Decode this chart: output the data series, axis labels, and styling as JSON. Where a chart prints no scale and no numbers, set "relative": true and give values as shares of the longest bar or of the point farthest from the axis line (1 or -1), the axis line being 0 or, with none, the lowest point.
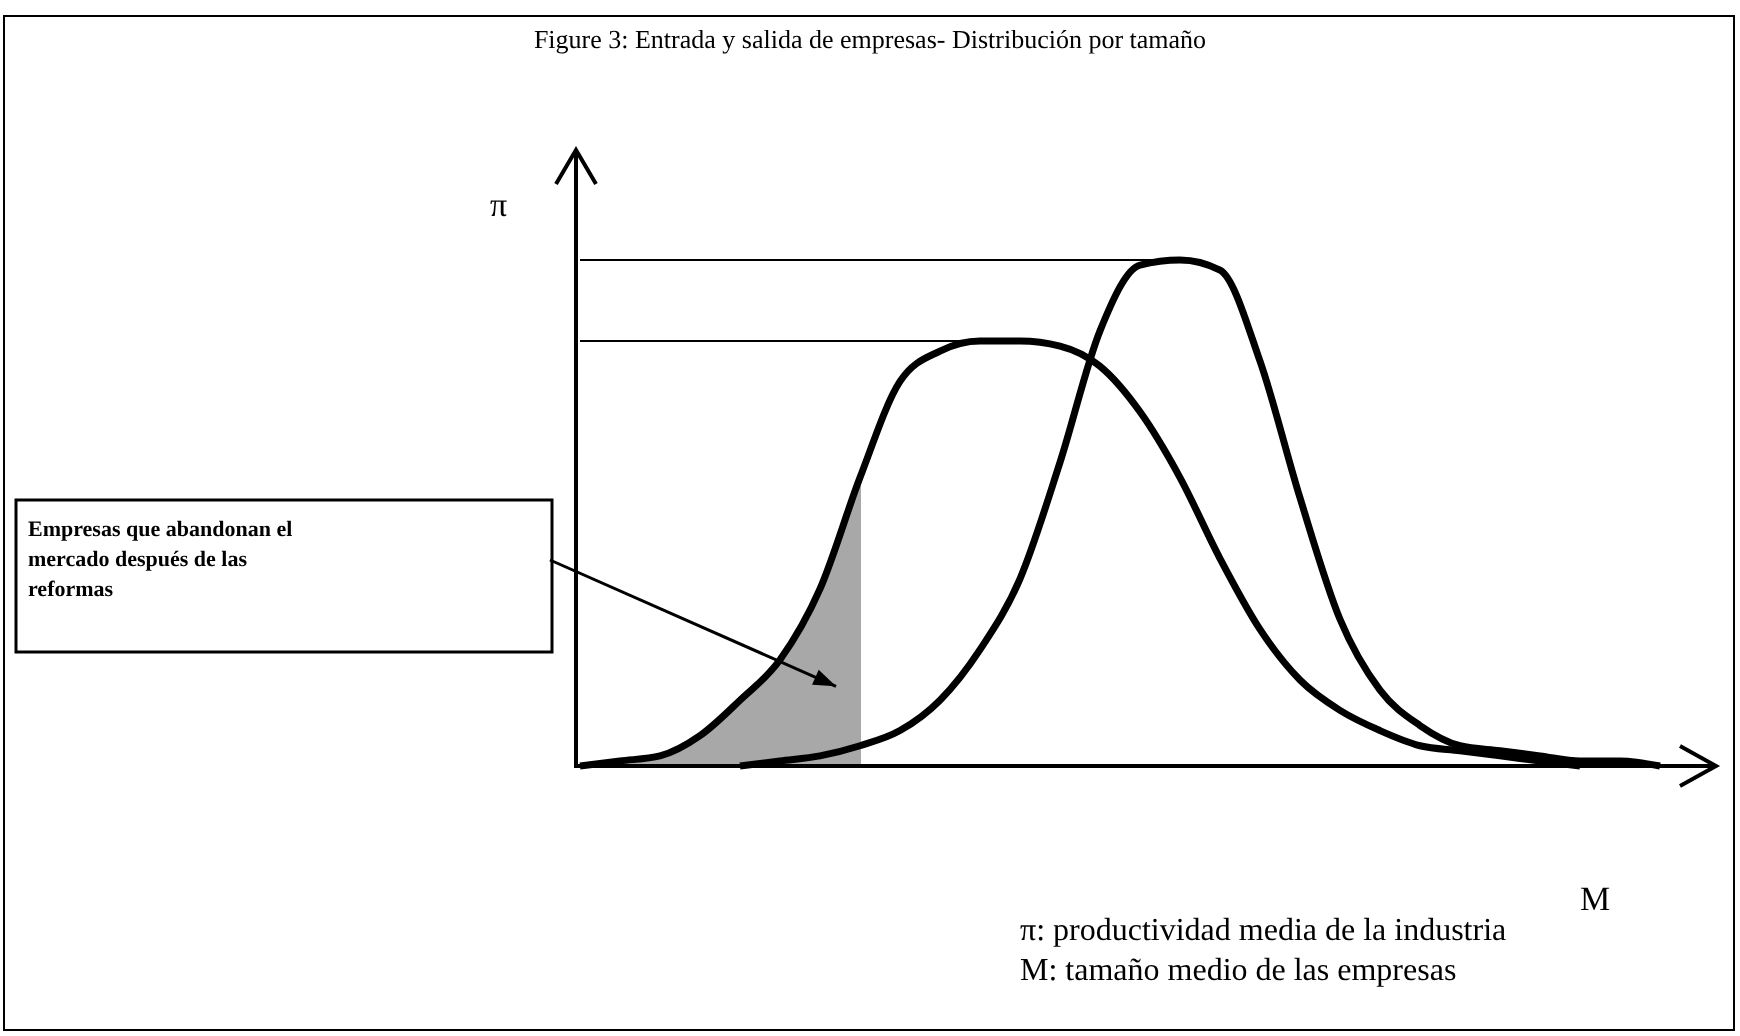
{
  "chart_data": {
    "type": "line",
    "title": "Figure 3: Entrada y salida de empresas- Distribución por tamaño",
    "xlabel": "M",
    "ylabel": "π",
    "relative": true,
    "line_style": "solid",
    "categories": [
      null,
      null,
      null,
      null,
      null,
      null,
      null,
      null,
      null,
      null,
      null,
      null,
      null,
      null,
      null,
      null,
      null,
      null,
      null,
      null,
      null,
      null,
      null,
      null,
      null,
      null,
      null,
      null
    ],
    "series": [
      {
        "type": "area",
        "color": "#a8a8a8",
        "values": [
          0,
          0.01,
          0.02,
          0.06,
          0.13,
          0.21,
          0.35,
          0.57,
          null,
          null,
          null,
          null,
          null,
          null,
          null,
          null,
          null,
          null,
          null,
          null,
          null,
          null,
          null,
          null,
          null,
          null,
          null,
          null
        ]
      },
      {
        "color": "#000000",
        "values": [
          0,
          0.01,
          0.02,
          0.06,
          0.13,
          0.21,
          0.35,
          0.57,
          0.76,
          0.82,
          0.84,
          0.84,
          0.83,
          0.79,
          0.7,
          0.57,
          0.41,
          0.27,
          0.17,
          0.11,
          0.07,
          0.04,
          0.03,
          0.02,
          0.01,
          0,
          null,
          null
        ]
      },
      {
        "color": "#000000",
        "values": [
          null,
          null,
          null,
          null,
          0,
          0.01,
          0.02,
          0.04,
          0.07,
          0.13,
          0.23,
          0.37,
          0.6,
          0.86,
          0.99,
          1,
          0.98,
          0.8,
          0.53,
          0.29,
          0.15,
          0.08,
          0.04,
          0.03,
          0.02,
          0.01,
          0.01,
          0
        ]
      }
    ],
    "ref_lines": [
      {
        "axis": "y",
        "value": 1,
        "color": "#000000"
      },
      {
        "axis": "y",
        "value": 0.84,
        "color": "#000000"
      }
    ],
    "annotations": [
      "Empresas que abandonan el mercado después de las reformas",
      "π: productividad media de la industria",
      "M: tamaño medio de las empresas"
    ]
  }
}
